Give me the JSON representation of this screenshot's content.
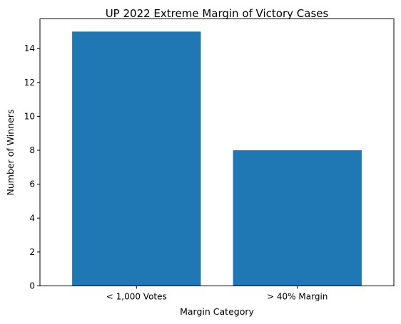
{
  "chart_data": {
    "type": "bar",
    "title": "UP 2022 Extreme Margin of Victory Cases",
    "xlabel": "Margin Category",
    "ylabel": "Number of Winners",
    "categories": [
      "< 1,000 Votes",
      "> 40% Margin"
    ],
    "values": [
      15,
      8
    ],
    "ylim": [
      0,
      15.75
    ],
    "yticks": [
      0,
      2,
      4,
      6,
      8,
      10,
      12,
      14
    ],
    "grid": false,
    "bar_color": "#1f77b4"
  }
}
